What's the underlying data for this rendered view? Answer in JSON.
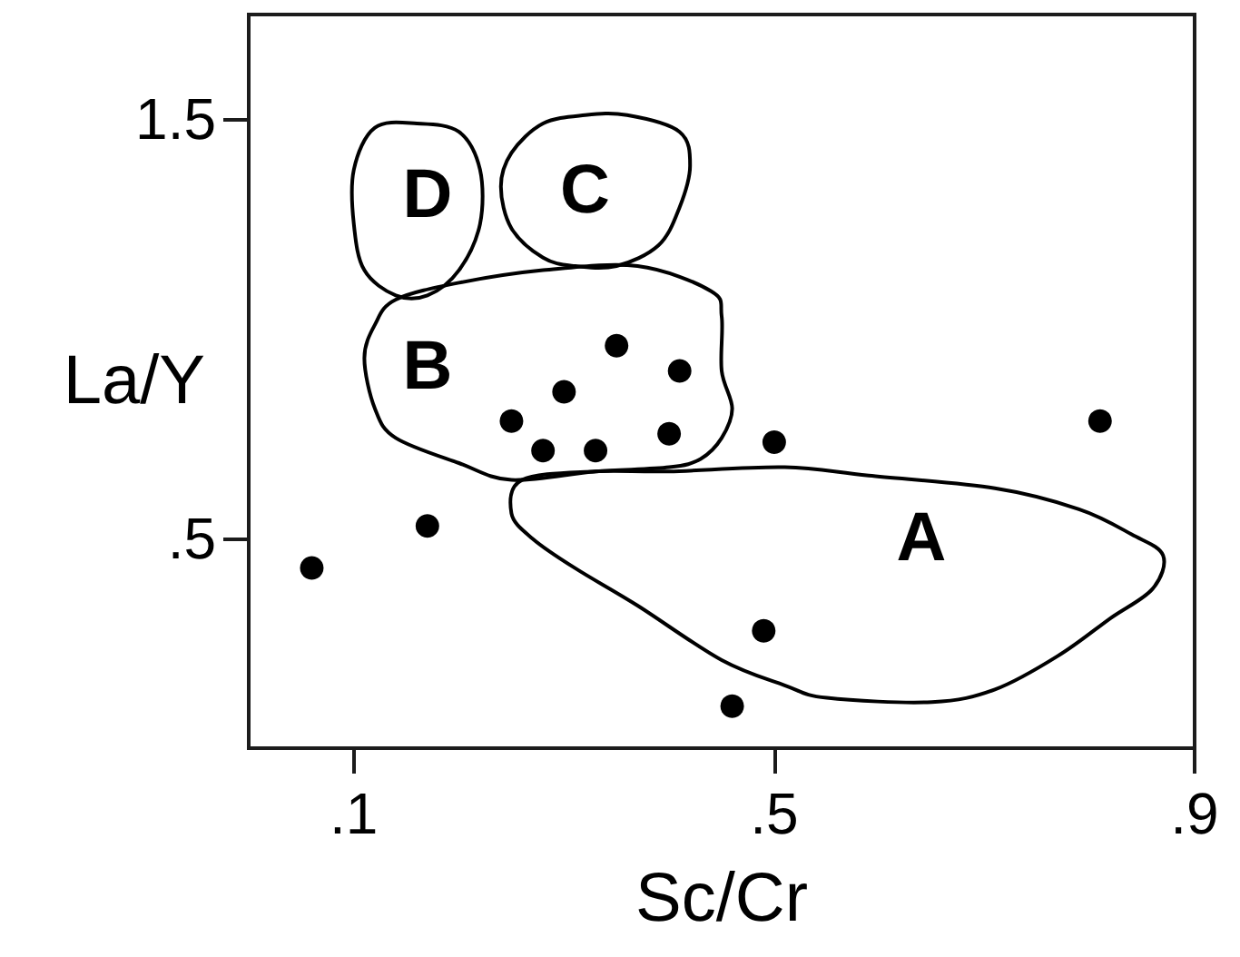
{
  "chart_data": {
    "type": "scatter",
    "xlabel": "Sc/Cr",
    "ylabel": "La/Y",
    "xlim": [
      0,
      0.9
    ],
    "xticks": [
      {
        "value": 0.1,
        "label": ".1"
      },
      {
        "value": 0.5,
        "label": ".5"
      },
      {
        "value": 0.9,
        "label": ".9"
      }
    ],
    "ylim": [
      0,
      1.75
    ],
    "yticks": [
      {
        "value": 0.5,
        "label": ".5"
      },
      {
        "value": 1.5,
        "label": "1.5"
      }
    ],
    "color": "#000000",
    "marker": "circle",
    "x": [
      0.06,
      0.17,
      0.35,
      0.3,
      0.25,
      0.28,
      0.33,
      0.41,
      0.4,
      0.5,
      0.81,
      0.49,
      0.46
    ],
    "values": [
      0.43,
      0.53,
      0.96,
      0.85,
      0.78,
      0.71,
      0.71,
      0.9,
      0.75,
      0.73,
      0.78,
      0.28,
      0.1
    ],
    "annotations": [
      "A",
      "B",
      "C",
      "D"
    ]
  }
}
